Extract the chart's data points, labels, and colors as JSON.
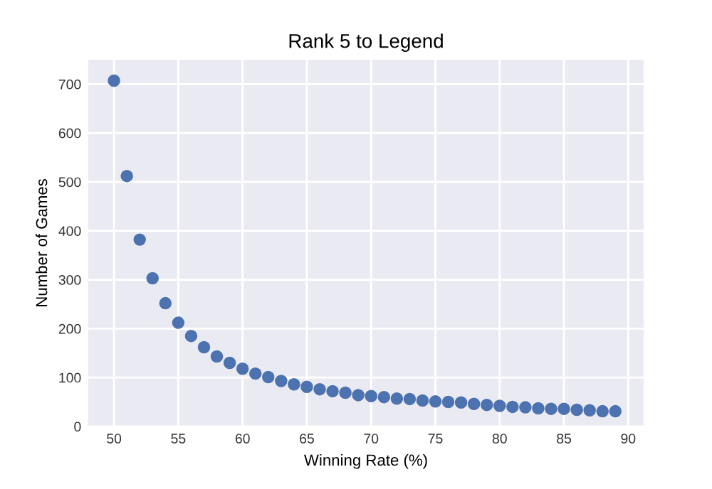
{
  "chart_data": {
    "type": "scatter",
    "title": "Rank 5 to Legend",
    "xlabel": "Winning Rate (%)",
    "ylabel": "Number of Games",
    "x": [
      50,
      51,
      52,
      53,
      54,
      55,
      56,
      57,
      58,
      59,
      60,
      61,
      62,
      63,
      64,
      65,
      66,
      67,
      68,
      69,
      70,
      71,
      72,
      73,
      74,
      75,
      76,
      77,
      78,
      79,
      80,
      81,
      82,
      83,
      84,
      85,
      86,
      87,
      88,
      89
    ],
    "series": [
      {
        "color": "#4c72b0",
        "values": [
          707,
          512,
          382,
          303,
          252,
          212,
          185,
          162,
          143,
          130,
          118,
          108,
          101,
          93,
          86,
          81,
          76,
          72,
          69,
          64,
          62,
          60,
          57,
          56,
          53,
          51,
          50,
          49,
          46,
          44,
          42,
          40,
          39,
          37,
          36,
          36,
          34,
          33,
          31,
          31
        ]
      }
    ],
    "xlim": [
      48,
      91.2
    ],
    "ylim": [
      0,
      750
    ],
    "xticks": [
      50,
      55,
      60,
      65,
      70,
      75,
      80,
      85,
      90
    ],
    "yticks": [
      0,
      100,
      200,
      300,
      400,
      500,
      600,
      700
    ],
    "grid": true,
    "marker": "circle"
  }
}
